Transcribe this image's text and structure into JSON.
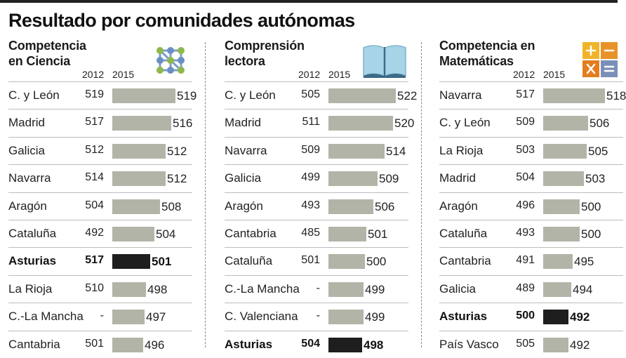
{
  "title": "Resultado por comunidades autónomas",
  "colors": {
    "bar": "#b3b4a8",
    "highlight_bar": "#1e1e1e"
  },
  "panels": [
    {
      "title_line1": "Competencia",
      "title_line2": "en Ciencia",
      "icon": "molecule-icon",
      "year_a": "2012",
      "year_b": "2015",
      "rows": [
        {
          "name": "C. y León",
          "v2012": "519",
          "v2015": "519",
          "highlight": false
        },
        {
          "name": "Madrid",
          "v2012": "517",
          "v2015": "516",
          "highlight": false
        },
        {
          "name": "Galicia",
          "v2012": "512",
          "v2015": "512",
          "highlight": false
        },
        {
          "name": "Navarra",
          "v2012": "514",
          "v2015": "512",
          "highlight": false
        },
        {
          "name": "Aragón",
          "v2012": "504",
          "v2015": "508",
          "highlight": false
        },
        {
          "name": "Cataluña",
          "v2012": "492",
          "v2015": "504",
          "highlight": false
        },
        {
          "name": "Asturias",
          "v2012": "517",
          "v2015": "501",
          "highlight": true
        },
        {
          "name": "La Rioja",
          "v2012": "510",
          "v2015": "498",
          "highlight": false
        },
        {
          "name": "C.-La Mancha",
          "v2012": "-",
          "v2015": "497",
          "highlight": false
        },
        {
          "name": "Cantabria",
          "v2012": "501",
          "v2015": "496",
          "highlight": false
        }
      ]
    },
    {
      "title_line1": "Comprensión",
      "title_line2": "lectora",
      "icon": "open-book-icon",
      "year_a": "2012",
      "year_b": "2015",
      "rows": [
        {
          "name": "C. y León",
          "v2012": "505",
          "v2015": "522",
          "highlight": false
        },
        {
          "name": "Madrid",
          "v2012": "511",
          "v2015": "520",
          "highlight": false
        },
        {
          "name": "Navarra",
          "v2012": "509",
          "v2015": "514",
          "highlight": false
        },
        {
          "name": "Galicia",
          "v2012": "499",
          "v2015": "509",
          "highlight": false
        },
        {
          "name": "Aragón",
          "v2012": "493",
          "v2015": "506",
          "highlight": false
        },
        {
          "name": "Cantabria",
          "v2012": "485",
          "v2015": "501",
          "highlight": false
        },
        {
          "name": "Cataluña",
          "v2012": "501",
          "v2015": "500",
          "highlight": false
        },
        {
          "name": "C.-La Mancha",
          "v2012": "-",
          "v2015": "499",
          "highlight": false
        },
        {
          "name": "C. Valenciana",
          "v2012": "-",
          "v2015": "499",
          "highlight": false
        },
        {
          "name": "Asturias",
          "v2012": "504",
          "v2015": "498",
          "highlight": true
        }
      ]
    },
    {
      "title_line1": "Competencia en",
      "title_line2": "Matemáticas",
      "icon": "math-operators-icon",
      "year_a": "2012",
      "year_b": "2015",
      "rows": [
        {
          "name": "Navarra",
          "v2012": "517",
          "v2015": "518",
          "highlight": false
        },
        {
          "name": "C. y León",
          "v2012": "509",
          "v2015": "506",
          "highlight": false
        },
        {
          "name": "La Rioja",
          "v2012": "503",
          "v2015": "505",
          "highlight": false
        },
        {
          "name": "Madrid",
          "v2012": "504",
          "v2015": "503",
          "highlight": false
        },
        {
          "name": "Aragón",
          "v2012": "496",
          "v2015": "500",
          "highlight": false
        },
        {
          "name": "Cataluña",
          "v2012": "493",
          "v2015": "500",
          "highlight": false
        },
        {
          "name": "Cantabria",
          "v2012": "491",
          "v2015": "495",
          "highlight": false
        },
        {
          "name": "Galicia",
          "v2012": "489",
          "v2015": "494",
          "highlight": false
        },
        {
          "name": "Asturias",
          "v2012": "500",
          "v2015": "492",
          "highlight": true
        },
        {
          "name": "País Vasco",
          "v2012": "505",
          "v2015": "492",
          "highlight": false
        }
      ]
    }
  ],
  "chart_data": [
    {
      "type": "bar",
      "title": "Competencia en Ciencia",
      "categories": [
        "C. y León",
        "Madrid",
        "Galicia",
        "Navarra",
        "Aragón",
        "Cataluña",
        "Asturias",
        "La Rioja",
        "C.-La Mancha",
        "Cantabria"
      ],
      "series": [
        {
          "name": "2012",
          "values": [
            519,
            517,
            512,
            514,
            504,
            492,
            517,
            510,
            null,
            501
          ]
        },
        {
          "name": "2015",
          "values": [
            519,
            516,
            512,
            512,
            508,
            504,
            501,
            498,
            497,
            496
          ]
        }
      ],
      "orientation": "horizontal"
    },
    {
      "type": "bar",
      "title": "Comprensión lectora",
      "categories": [
        "C. y León",
        "Madrid",
        "Navarra",
        "Galicia",
        "Aragón",
        "Cantabria",
        "Cataluña",
        "C.-La Mancha",
        "C. Valenciana",
        "Asturias"
      ],
      "series": [
        {
          "name": "2012",
          "values": [
            505,
            511,
            509,
            499,
            493,
            485,
            501,
            null,
            null,
            504
          ]
        },
        {
          "name": "2015",
          "values": [
            522,
            520,
            514,
            509,
            506,
            501,
            500,
            499,
            499,
            498
          ]
        }
      ],
      "orientation": "horizontal"
    },
    {
      "type": "bar",
      "title": "Competencia en Matemáticas",
      "categories": [
        "Navarra",
        "C. y León",
        "La Rioja",
        "Madrid",
        "Aragón",
        "Cataluña",
        "Cantabria",
        "Galicia",
        "Asturias",
        "País Vasco"
      ],
      "series": [
        {
          "name": "2012",
          "values": [
            517,
            509,
            503,
            504,
            496,
            493,
            491,
            489,
            500,
            505
          ]
        },
        {
          "name": "2015",
          "values": [
            518,
            506,
            505,
            503,
            500,
            500,
            495,
            494,
            492,
            492
          ]
        }
      ],
      "orientation": "horizontal"
    }
  ]
}
